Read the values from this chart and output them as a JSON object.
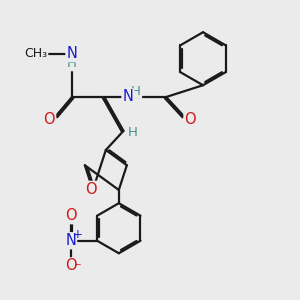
{
  "bg_color": "#ebebeb",
  "bond_color": "#1a1a1a",
  "bond_width": 1.6,
  "dbo": 0.06,
  "atom_colors": {
    "C": "#1a1a1a",
    "H": "#4a9090",
    "N": "#1a1acc",
    "O": "#cc1a1a"
  },
  "fs": 9.5
}
